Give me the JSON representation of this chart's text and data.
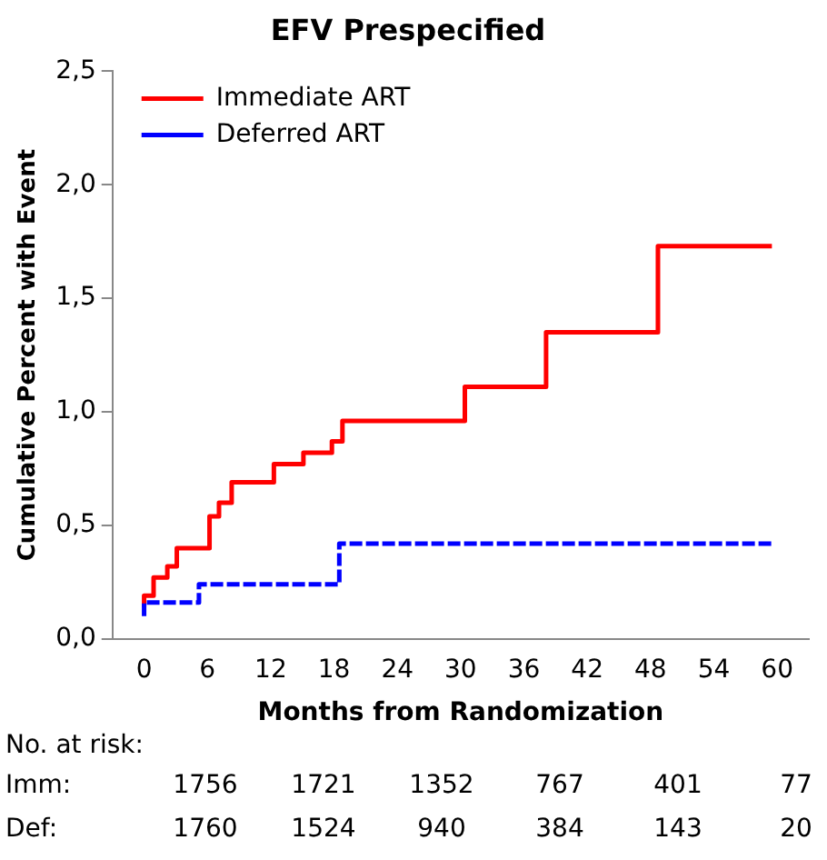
{
  "chart_data": {
    "type": "step",
    "title": "EFV Prespecified",
    "xlabel": "Months from Randomization",
    "ylabel": "Cumulative Percent with Event",
    "series": [
      {
        "name": "Immediate ART",
        "color": "#ff0000",
        "line_style": "solid",
        "x": [
          0,
          0.9,
          2.2,
          3.1,
          6.2,
          7.1,
          8.3,
          12.3,
          15.1,
          17.8,
          18.8,
          30.4,
          38.1,
          48.7,
          53,
          59.5
        ],
        "values": [
          0.14,
          0.19,
          0.27,
          0.32,
          0.4,
          0.54,
          0.6,
          0.69,
          0.77,
          0.82,
          0.87,
          0.96,
          1.11,
          1.35,
          1.73,
          1.73
        ]
      },
      {
        "name": "Deferred ART",
        "color": "#0000ff",
        "line_style": "dashed",
        "x": [
          0,
          5.2,
          18.5,
          32.3,
          59.6
        ],
        "values": [
          0.1,
          0.16,
          0.24,
          0.42,
          0.42
        ]
      }
    ],
    "xlim": [
      -3,
      63
    ],
    "xticks": [
      0,
      6,
      12,
      18,
      24,
      30,
      36,
      42,
      48,
      54,
      60
    ],
    "ylim": [
      0,
      2.5
    ],
    "yticks": [
      {
        "value": 0,
        "label": "0,0"
      },
      {
        "value": 0.5,
        "label": "0,5"
      },
      {
        "value": 1,
        "label": "1,0"
      },
      {
        "value": 1.5,
        "label": "1,5"
      },
      {
        "value": 2,
        "label": "2,0"
      },
      {
        "value": 2.5,
        "label": "2,5"
      }
    ],
    "grid": false,
    "legend": "top left",
    "marker": "none",
    "annotations": [
      "No. at risk:",
      "Imm:",
      "1756",
      "1721",
      "1352",
      "767",
      "401",
      "77",
      "Def:",
      "1760",
      "1524",
      "940",
      "384",
      "143",
      "20"
    ]
  }
}
